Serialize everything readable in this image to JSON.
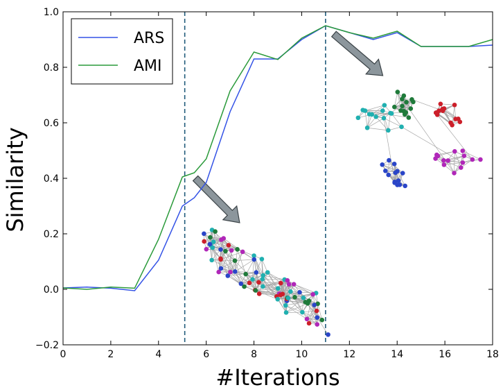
{
  "chart_data": {
    "type": "line",
    "xlabel": "#Iterations",
    "ylabel": "Similarity",
    "xlim": [
      0,
      18
    ],
    "ylim": [
      -0.2,
      1.0
    ],
    "xticks": [
      "0",
      "2",
      "4",
      "6",
      "8",
      "10",
      "12",
      "14",
      "16",
      "18"
    ],
    "yticks": [
      "−0.2",
      "0.0",
      "0.2",
      "0.4",
      "0.6",
      "0.8",
      "1.0"
    ],
    "grid": false,
    "legend_position": "top-left",
    "series": [
      {
        "name": "ARS",
        "color": "#3352e6",
        "x": [
          0,
          1,
          2,
          3,
          4,
          5,
          5.5,
          6,
          7,
          8,
          9,
          10,
          11,
          12,
          13,
          14,
          15,
          16,
          17,
          18
        ],
        "values": [
          0.005,
          0.008,
          0.004,
          -0.005,
          0.105,
          0.3,
          0.33,
          0.385,
          0.64,
          0.83,
          0.83,
          0.9,
          0.95,
          0.925,
          0.9,
          0.925,
          0.875,
          0.875,
          0.875,
          0.88
        ]
      },
      {
        "name": "AMI",
        "color": "#2a9a3a",
        "x": [
          0,
          1,
          2,
          3,
          4,
          5,
          5.5,
          6,
          7,
          8,
          9,
          10,
          11,
          12,
          13,
          14,
          15,
          16,
          17,
          18
        ],
        "values": [
          0.005,
          0.0,
          0.008,
          0.004,
          0.18,
          0.405,
          0.42,
          0.47,
          0.715,
          0.855,
          0.828,
          0.905,
          0.95,
          0.925,
          0.905,
          0.93,
          0.875,
          0.875,
          0.875,
          0.9
        ]
      }
    ],
    "vlines": [
      5.1,
      11.0
    ],
    "insets": [
      {
        "description": "mixed cluster graph",
        "anchor_x": 7.0,
        "anchor_y": 0.2
      },
      {
        "description": "separated cluster graph",
        "anchor_x": 13.0,
        "anchor_y": 0.75
      }
    ]
  },
  "colors": {
    "ars": "#3352e6",
    "ami": "#2a9a3a",
    "vline": "#1f5a7a",
    "cluster_colors": [
      "#2a45c8",
      "#cc1f2a",
      "#1f7a3a",
      "#20b0b0",
      "#b027b8"
    ]
  }
}
